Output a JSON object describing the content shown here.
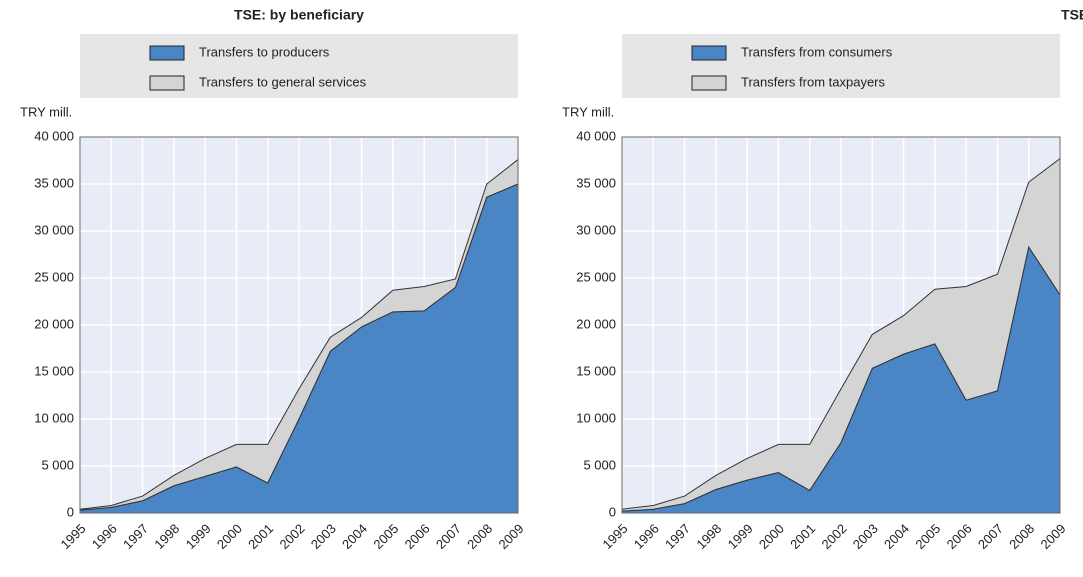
{
  "chart_data": [
    {
      "type": "area",
      "stacked": true,
      "grid": true,
      "title": "TSE: by beneficiary",
      "y_label": "TRY mill.",
      "categories": [
        "1995",
        "1996",
        "1997",
        "1998",
        "1999",
        "2000",
        "2001",
        "2002",
        "2003",
        "2004",
        "2005",
        "2006",
        "2007",
        "2008",
        "2009"
      ],
      "series": [
        {
          "name": "Transfers to producers",
          "color": "#4a86c6",
          "values": [
            300,
            600,
            1300,
            2900,
            3900,
            4900,
            3200,
            10000,
            17200,
            19800,
            21400,
            21500,
            24000,
            33600,
            35000
          ]
        },
        {
          "name": "Transfers to general services",
          "color": "#d4d4d4",
          "values": [
            100,
            200,
            500,
            1100,
            1900,
            2400,
            4100,
            3200,
            1500,
            1000,
            2300,
            2600,
            900,
            1400,
            2600
          ]
        }
      ],
      "ylim": [
        0,
        40000
      ],
      "yticks": [
        0,
        {
          "value": 5000,
          "label": "5 000"
        },
        {
          "value": 10000,
          "label": "10 000"
        },
        {
          "value": 15000,
          "label": "15 000"
        },
        {
          "value": 20000,
          "label": "20 000"
        },
        {
          "value": 25000,
          "label": "25 000"
        },
        {
          "value": 30000,
          "label": "30 000"
        },
        {
          "value": 35000,
          "label": "35 000"
        },
        {
          "value": 40000,
          "label": "40 000"
        }
      ]
    },
    {
      "type": "area",
      "stacked": true,
      "grid": true,
      "title": "TSE: by source",
      "y_label": "TRY mill.",
      "categories": [
        "1995",
        "1996",
        "1997",
        "1998",
        "1999",
        "2000",
        "2001",
        "2002",
        "2003",
        "2004",
        "2005",
        "2006",
        "2007",
        "2008",
        "2009"
      ],
      "series": [
        {
          "name": "Transfers from consumers",
          "color": "#4a86c6",
          "values": [
            200,
            400,
            1000,
            2500,
            3500,
            4300,
            2400,
            7500,
            15400,
            16900,
            18000,
            12000,
            13000,
            28300,
            23200
          ]
        },
        {
          "name": "Transfers from taxpayers",
          "color": "#d4d4d4",
          "values": [
            200,
            400,
            800,
            1500,
            2300,
            3000,
            4900,
            5700,
            3600,
            4100,
            5800,
            12100,
            12400,
            6900,
            14500
          ]
        }
      ],
      "ylim": [
        0,
        40000
      ],
      "yticks": [
        0,
        {
          "value": 5000,
          "label": "5 000"
        },
        {
          "value": 10000,
          "label": "10 000"
        },
        {
          "value": 15000,
          "label": "15 000"
        },
        {
          "value": 20000,
          "label": "20 000"
        },
        {
          "value": 25000,
          "label": "25 000"
        },
        {
          "value": 30000,
          "label": "30 000"
        },
        {
          "value": 35000,
          "label": "35 000"
        },
        {
          "value": 40000,
          "label": "40 000"
        }
      ]
    }
  ]
}
